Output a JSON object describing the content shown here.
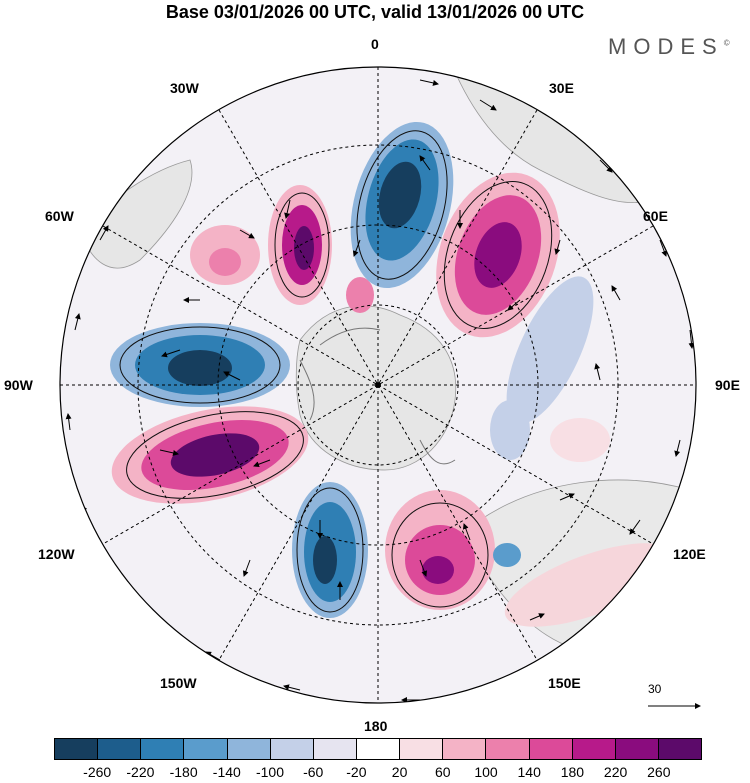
{
  "title": "Base 03/01/2026 00 UTC, valid 13/01/2026 00 UTC",
  "brand": "MODES",
  "brand_mark": "©",
  "longitude_labels": {
    "deg0": "0",
    "deg30e": "30E",
    "deg60e": "60E",
    "deg90e": "90E",
    "deg120e": "120E",
    "deg150e": "150E",
    "deg180": "180",
    "deg150w": "150W",
    "deg120w": "120W",
    "deg90w": "90W",
    "deg60w": "60W",
    "deg30w": "30W"
  },
  "reference_vector": "30",
  "colorbar": {
    "colors": [
      "#163e5e",
      "#1d5d8c",
      "#2f7fb4",
      "#5a9ccc",
      "#8fb5db",
      "#c4d0e8",
      "#e6e4f0",
      "#ffffff",
      "#f8dfe4",
      "#f4b3c6",
      "#ec80ac",
      "#dc4a99",
      "#b71a8a",
      "#8a0c7e",
      "#5c0a6a"
    ],
    "ticks": [
      "-260",
      "-220",
      "-180",
      "-140",
      "-100",
      "-60",
      "-20",
      "20",
      "60",
      "100",
      "140",
      "180",
      "220",
      "260"
    ]
  }
}
